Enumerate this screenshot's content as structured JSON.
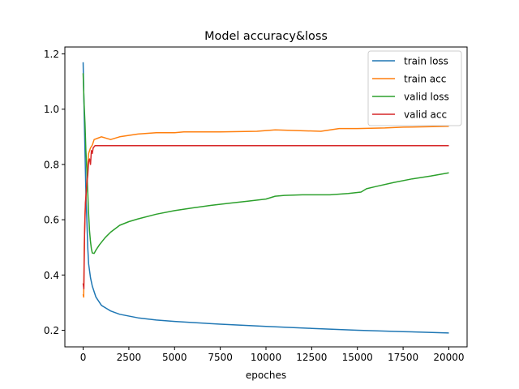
{
  "chart_data": {
    "type": "line",
    "title": "Model accuracy&loss",
    "xlabel": "epoches",
    "ylabel": "",
    "xlim": [
      -1000,
      21000
    ],
    "ylim": [
      0.14,
      1.225
    ],
    "xticks": [
      0,
      2500,
      5000,
      7500,
      10000,
      12500,
      15000,
      17500,
      20000
    ],
    "xtick_labels": [
      "0",
      "2500",
      "5000",
      "7500",
      "10000",
      "12500",
      "15000",
      "17500",
      "20000"
    ],
    "yticks": [
      0.2,
      0.4,
      0.6,
      0.8,
      1.0,
      1.2
    ],
    "ytick_labels": [
      "0.2",
      "0.4",
      "0.6",
      "0.8",
      "1.0",
      "1.2"
    ],
    "grid": false,
    "legend_position": "top-right",
    "series": [
      {
        "name": "train loss",
        "color": "#1f77b4",
        "points": [
          [
            0,
            1.17
          ],
          [
            50,
            1.0
          ],
          [
            100,
            0.85
          ],
          [
            150,
            0.7
          ],
          [
            200,
            0.6
          ],
          [
            250,
            0.5
          ],
          [
            300,
            0.44
          ],
          [
            400,
            0.39
          ],
          [
            500,
            0.36
          ],
          [
            700,
            0.32
          ],
          [
            1000,
            0.29
          ],
          [
            1500,
            0.27
          ],
          [
            2000,
            0.258
          ],
          [
            3000,
            0.245
          ],
          [
            4000,
            0.237
          ],
          [
            5000,
            0.232
          ],
          [
            6000,
            0.228
          ],
          [
            7500,
            0.222
          ],
          [
            10000,
            0.214
          ],
          [
            12500,
            0.207
          ],
          [
            15000,
            0.2
          ],
          [
            17500,
            0.195
          ],
          [
            20000,
            0.19
          ]
        ]
      },
      {
        "name": "train acc",
        "color": "#ff7f0e",
        "points": [
          [
            0,
            0.33
          ],
          [
            30,
            0.32
          ],
          [
            60,
            0.5
          ],
          [
            100,
            0.62
          ],
          [
            200,
            0.74
          ],
          [
            300,
            0.84
          ],
          [
            400,
            0.86
          ],
          [
            500,
            0.87
          ],
          [
            600,
            0.89
          ],
          [
            800,
            0.895
          ],
          [
            1000,
            0.9
          ],
          [
            1500,
            0.89
          ],
          [
            2000,
            0.9
          ],
          [
            3000,
            0.91
          ],
          [
            4000,
            0.915
          ],
          [
            5000,
            0.915
          ],
          [
            5500,
            0.918
          ],
          [
            7500,
            0.918
          ],
          [
            9500,
            0.92
          ],
          [
            10500,
            0.925
          ],
          [
            13000,
            0.92
          ],
          [
            14000,
            0.93
          ],
          [
            15000,
            0.93
          ],
          [
            16500,
            0.932
          ],
          [
            17500,
            0.935
          ],
          [
            20000,
            0.938
          ]
        ]
      },
      {
        "name": "valid loss",
        "color": "#2ca02c",
        "points": [
          [
            0,
            1.13
          ],
          [
            50,
            1.02
          ],
          [
            100,
            0.95
          ],
          [
            150,
            0.85
          ],
          [
            200,
            0.78
          ],
          [
            250,
            0.7
          ],
          [
            300,
            0.62
          ],
          [
            350,
            0.56
          ],
          [
            400,
            0.52
          ],
          [
            450,
            0.495
          ],
          [
            500,
            0.48
          ],
          [
            600,
            0.478
          ],
          [
            700,
            0.49
          ],
          [
            900,
            0.51
          ],
          [
            1200,
            0.535
          ],
          [
            1500,
            0.555
          ],
          [
            2000,
            0.58
          ],
          [
            2500,
            0.593
          ],
          [
            3000,
            0.603
          ],
          [
            4000,
            0.62
          ],
          [
            5000,
            0.633
          ],
          [
            6000,
            0.643
          ],
          [
            7000,
            0.652
          ],
          [
            8000,
            0.66
          ],
          [
            9000,
            0.667
          ],
          [
            10000,
            0.675
          ],
          [
            10500,
            0.685
          ],
          [
            11000,
            0.688
          ],
          [
            12000,
            0.69
          ],
          [
            13500,
            0.69
          ],
          [
            14500,
            0.695
          ],
          [
            15200,
            0.7
          ],
          [
            15500,
            0.712
          ],
          [
            16000,
            0.72
          ],
          [
            17000,
            0.735
          ],
          [
            18000,
            0.748
          ],
          [
            19000,
            0.758
          ],
          [
            20000,
            0.77
          ]
        ]
      },
      {
        "name": "valid acc",
        "color": "#d62728",
        "points": [
          [
            0,
            0.37
          ],
          [
            40,
            0.35
          ],
          [
            80,
            0.55
          ],
          [
            120,
            0.66
          ],
          [
            200,
            0.73
          ],
          [
            250,
            0.76
          ],
          [
            300,
            0.81
          ],
          [
            350,
            0.82
          ],
          [
            400,
            0.8
          ],
          [
            450,
            0.85
          ],
          [
            500,
            0.84
          ],
          [
            550,
            0.86
          ],
          [
            650,
            0.868
          ],
          [
            1000,
            0.868
          ],
          [
            5000,
            0.868
          ],
          [
            10000,
            0.868
          ],
          [
            15000,
            0.868
          ],
          [
            20000,
            0.868
          ]
        ]
      }
    ]
  }
}
